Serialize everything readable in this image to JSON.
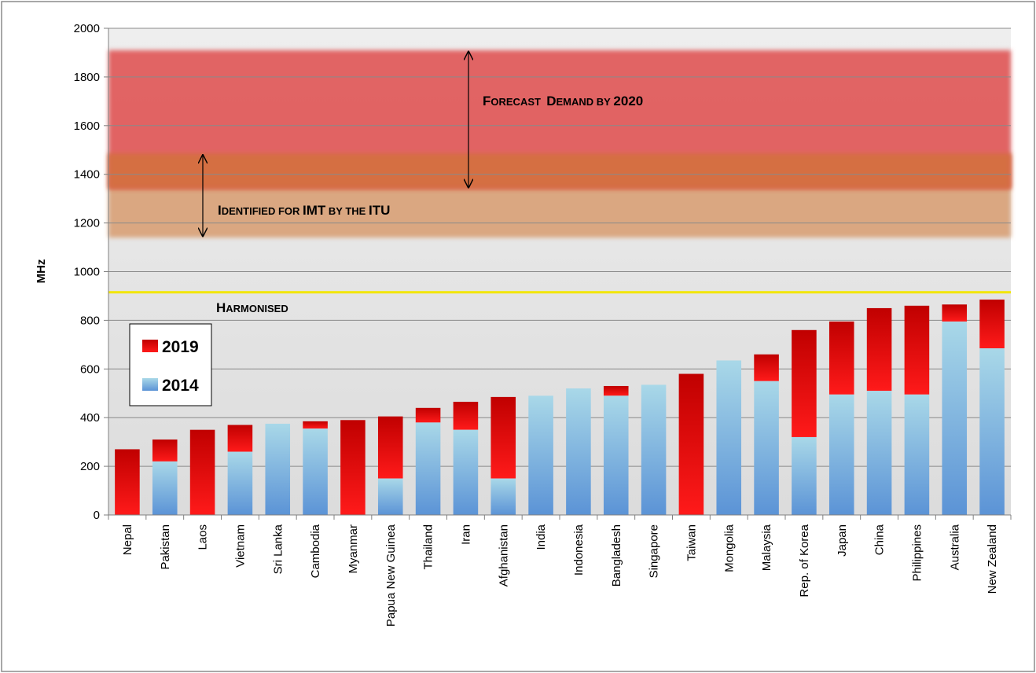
{
  "chart_data": {
    "type": "bar",
    "stacked": true,
    "ylabel": "MHz",
    "ylim": [
      0,
      2000
    ],
    "yticks": [
      0,
      200,
      400,
      600,
      800,
      1000,
      1200,
      1400,
      1600,
      1800,
      2000
    ],
    "grid": true,
    "legend_position": "left-middle",
    "categories": [
      "Nepal",
      "Pakistan",
      "Laos",
      "Vietnam",
      "Sri Lanka",
      "Cambodia",
      "Myanmar",
      "Papua New Guinea",
      "Thailand",
      "Iran",
      "Afghanistan",
      "India",
      "Indonesia",
      "Bangladesh",
      "Singapore",
      "Taiwan",
      "Mongolia",
      "Malaysia",
      "Rep. of Korea",
      "Japan",
      "China",
      "Philippines",
      "Australia",
      "New Zealand"
    ],
    "series": [
      {
        "name": "2014",
        "color": "#6fa8dc",
        "values": [
          0,
          220,
          0,
          260,
          375,
          355,
          0,
          150,
          380,
          350,
          150,
          490,
          520,
          490,
          535,
          0,
          635,
          550,
          320,
          495,
          510,
          495,
          795,
          685
        ]
      },
      {
        "name": "2019",
        "color": "#e00000",
        "values": [
          270,
          310,
          350,
          370,
          375,
          385,
          390,
          405,
          440,
          465,
          485,
          490,
          520,
          530,
          535,
          580,
          635,
          660,
          760,
          795,
          850,
          860,
          865,
          885
        ]
      }
    ],
    "legend": [
      {
        "name": "2019",
        "color": "#e00000"
      },
      {
        "name": "2014",
        "color": "#6fa8dc"
      }
    ],
    "bands": [
      {
        "label_lead": "F",
        "label_rest": "ORECAST",
        "label_lead2": "D",
        "label_rest2": "EMAND BY",
        "label_num": "2020",
        "from": 1340,
        "to": 1910,
        "color": "#e05c5c"
      },
      {
        "label_lead": "I",
        "label_rest": "DENTIFIED FOR",
        "label_strong": "IMT",
        "label_rest2": "BY THE",
        "label_strong2": "ITU",
        "from": 1140,
        "to": 1485,
        "color": "#d9a37b"
      }
    ],
    "harmonised": {
      "label_lead": "H",
      "label_rest": "ARMONISED",
      "value": 915,
      "color": "#f2e600"
    }
  }
}
